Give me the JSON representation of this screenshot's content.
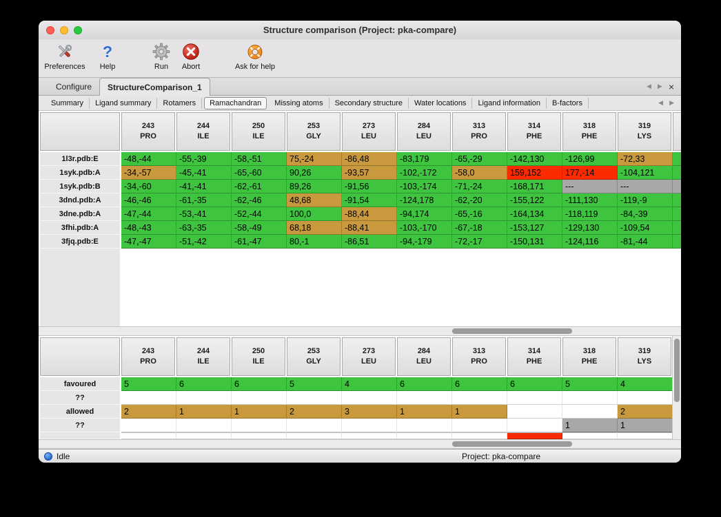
{
  "window": {
    "title": "Structure comparison (Project: pka-compare)"
  },
  "toolbar": [
    {
      "label": "Preferences"
    },
    {
      "label": "Help"
    },
    {
      "label": "Run"
    },
    {
      "label": "Abort"
    },
    {
      "label": "Ask for help"
    }
  ],
  "tabs": [
    {
      "label": "Configure"
    },
    {
      "label": "StructureComparison_1"
    }
  ],
  "subtabs": [
    "Summary",
    "Ligand summary",
    "Rotamers",
    "Ramachandran",
    "Missing atoms",
    "Secondary structure",
    "Water locations",
    "Ligand information",
    "B-factors"
  ],
  "selected_subtab": "Ramachandran",
  "icons": {
    "back": "◀",
    "forward": "▶",
    "close": "×",
    "help": "?"
  },
  "colors": {
    "green": "#3ec43e",
    "orange": "#c9993e",
    "red": "#ff2b00",
    "gray": "#a8a8a8",
    "blank": "#ffffff"
  },
  "columns": [
    {
      "num": "243",
      "res": "PRO"
    },
    {
      "num": "244",
      "res": "ILE"
    },
    {
      "num": "250",
      "res": "ILE"
    },
    {
      "num": "253",
      "res": "GLY"
    },
    {
      "num": "273",
      "res": "LEU"
    },
    {
      "num": "284",
      "res": "LEU"
    },
    {
      "num": "313",
      "res": "PRO"
    },
    {
      "num": "314",
      "res": "PHE"
    },
    {
      "num": "318",
      "res": "PHE"
    },
    {
      "num": "319",
      "res": "LYS"
    }
  ],
  "structure_rows": [
    {
      "label": "1l3r.pdb:E",
      "edge": "green",
      "cells": [
        {
          "v": "-48,-44",
          "c": "green"
        },
        {
          "v": "-55,-39",
          "c": "green"
        },
        {
          "v": "-58,-51",
          "c": "green"
        },
        {
          "v": "75,-24",
          "c": "orange"
        },
        {
          "v": "-86,48",
          "c": "orange"
        },
        {
          "v": "-83,179",
          "c": "green"
        },
        {
          "v": "-65,-29",
          "c": "green"
        },
        {
          "v": "-142,130",
          "c": "green"
        },
        {
          "v": "-126,99",
          "c": "green"
        },
        {
          "v": "-72,33",
          "c": "orange"
        }
      ]
    },
    {
      "label": "1syk.pdb:A",
      "edge": "green",
      "cells": [
        {
          "v": "-34,-57",
          "c": "orange"
        },
        {
          "v": "-45,-41",
          "c": "green"
        },
        {
          "v": "-65,-60",
          "c": "green"
        },
        {
          "v": "90,26",
          "c": "green"
        },
        {
          "v": "-93,57",
          "c": "orange"
        },
        {
          "v": "-102,-172",
          "c": "green"
        },
        {
          "v": "-58,0",
          "c": "orange"
        },
        {
          "v": "159,152",
          "c": "red"
        },
        {
          "v": "177,-14",
          "c": "red"
        },
        {
          "v": "-104,121",
          "c": "green"
        }
      ]
    },
    {
      "label": "1syk.pdb:B",
      "edge": "gray",
      "cells": [
        {
          "v": "-34,-60",
          "c": "green"
        },
        {
          "v": "-41,-41",
          "c": "green"
        },
        {
          "v": "-62,-61",
          "c": "green"
        },
        {
          "v": "89,26",
          "c": "green"
        },
        {
          "v": "-91,56",
          "c": "green"
        },
        {
          "v": "-103,-174",
          "c": "green"
        },
        {
          "v": "-71,-24",
          "c": "green"
        },
        {
          "v": "-168,171",
          "c": "green"
        },
        {
          "v": "---",
          "c": "gray"
        },
        {
          "v": "---",
          "c": "gray"
        }
      ]
    },
    {
      "label": "3dnd.pdb:A",
      "edge": "green",
      "cells": [
        {
          "v": "-46,-46",
          "c": "green"
        },
        {
          "v": "-61,-35",
          "c": "green"
        },
        {
          "v": "-62,-46",
          "c": "green"
        },
        {
          "v": "48,68",
          "c": "orange"
        },
        {
          "v": "-91,54",
          "c": "green"
        },
        {
          "v": "-124,178",
          "c": "green"
        },
        {
          "v": "-62,-20",
          "c": "green"
        },
        {
          "v": "-155,122",
          "c": "green"
        },
        {
          "v": "-111,130",
          "c": "green"
        },
        {
          "v": "-119,-9",
          "c": "green"
        }
      ]
    },
    {
      "label": "3dne.pdb:A",
      "edge": "green",
      "cells": [
        {
          "v": "-47,-44",
          "c": "green"
        },
        {
          "v": "-53,-41",
          "c": "green"
        },
        {
          "v": "-52,-44",
          "c": "green"
        },
        {
          "v": "100,0",
          "c": "green"
        },
        {
          "v": "-88,44",
          "c": "orange"
        },
        {
          "v": "-94,174",
          "c": "green"
        },
        {
          "v": "-65,-16",
          "c": "green"
        },
        {
          "v": "-164,134",
          "c": "green"
        },
        {
          "v": "-118,119",
          "c": "green"
        },
        {
          "v": "-84,-39",
          "c": "green"
        }
      ]
    },
    {
      "label": "3fhi.pdb:A",
      "edge": "green",
      "cells": [
        {
          "v": "-48,-43",
          "c": "green"
        },
        {
          "v": "-63,-35",
          "c": "green"
        },
        {
          "v": "-58,-49",
          "c": "green"
        },
        {
          "v": "68,18",
          "c": "orange"
        },
        {
          "v": "-88,41",
          "c": "orange"
        },
        {
          "v": "-103,-170",
          "c": "green"
        },
        {
          "v": "-67,-18",
          "c": "green"
        },
        {
          "v": "-153,127",
          "c": "green"
        },
        {
          "v": "-129,130",
          "c": "green"
        },
        {
          "v": "-109,54",
          "c": "green"
        }
      ]
    },
    {
      "label": "3fjq.pdb:E",
      "edge": "green",
      "cells": [
        {
          "v": "-47,-47",
          "c": "green"
        },
        {
          "v": "-51,-42",
          "c": "green"
        },
        {
          "v": "-61,-47",
          "c": "green"
        },
        {
          "v": "80,-1",
          "c": "green"
        },
        {
          "v": "-86,51",
          "c": "green"
        },
        {
          "v": "-94,-179",
          "c": "green"
        },
        {
          "v": "-72,-17",
          "c": "green"
        },
        {
          "v": "-150,131",
          "c": "green"
        },
        {
          "v": "-124,116",
          "c": "green"
        },
        {
          "v": "-81,-44",
          "c": "green"
        }
      ]
    }
  ],
  "summary_rows": [
    {
      "label": "favoured",
      "cells": [
        {
          "v": "5",
          "c": "green"
        },
        {
          "v": "6",
          "c": "green"
        },
        {
          "v": "6",
          "c": "green"
        },
        {
          "v": "5",
          "c": "green"
        },
        {
          "v": "4",
          "c": "green"
        },
        {
          "v": "6",
          "c": "green"
        },
        {
          "v": "6",
          "c": "green"
        },
        {
          "v": "6",
          "c": "green"
        },
        {
          "v": "5",
          "c": "green"
        },
        {
          "v": "4",
          "c": "green"
        }
      ]
    },
    {
      "label": "??",
      "cells": [
        {
          "v": "",
          "c": "blank"
        },
        {
          "v": "",
          "c": "blank"
        },
        {
          "v": "",
          "c": "blank"
        },
        {
          "v": "",
          "c": "blank"
        },
        {
          "v": "",
          "c": "blank"
        },
        {
          "v": "",
          "c": "blank"
        },
        {
          "v": "",
          "c": "blank"
        },
        {
          "v": "",
          "c": "blank"
        },
        {
          "v": "",
          "c": "blank"
        },
        {
          "v": "",
          "c": "blank"
        }
      ]
    },
    {
      "label": "allowed",
      "cells": [
        {
          "v": "2",
          "c": "orange"
        },
        {
          "v": "1",
          "c": "orange"
        },
        {
          "v": "1",
          "c": "orange"
        },
        {
          "v": "2",
          "c": "orange"
        },
        {
          "v": "3",
          "c": "orange"
        },
        {
          "v": "1",
          "c": "orange"
        },
        {
          "v": "1",
          "c": "orange"
        },
        {
          "v": "",
          "c": "blank"
        },
        {
          "v": "",
          "c": "blank"
        },
        {
          "v": "2",
          "c": "orange"
        }
      ]
    },
    {
      "label": "??",
      "cells": [
        {
          "v": "",
          "c": "blank"
        },
        {
          "v": "",
          "c": "blank"
        },
        {
          "v": "",
          "c": "blank"
        },
        {
          "v": "",
          "c": "blank"
        },
        {
          "v": "",
          "c": "blank"
        },
        {
          "v": "",
          "c": "blank"
        },
        {
          "v": "",
          "c": "blank"
        },
        {
          "v": "",
          "c": "blank"
        },
        {
          "v": "1",
          "c": "gray"
        },
        {
          "v": "1",
          "c": "gray"
        }
      ]
    },
    {
      "label": "",
      "partial": true,
      "cells": [
        {
          "v": "",
          "c": "blank"
        },
        {
          "v": "",
          "c": "blank"
        },
        {
          "v": "",
          "c": "blank"
        },
        {
          "v": "",
          "c": "blank"
        },
        {
          "v": "",
          "c": "blank"
        },
        {
          "v": "",
          "c": "blank"
        },
        {
          "v": "",
          "c": "blank"
        },
        {
          "v": "",
          "c": "red"
        },
        {
          "v": "",
          "c": "blank"
        },
        {
          "v": "",
          "c": "blank"
        }
      ]
    }
  ],
  "statusbar": {
    "state": "Idle",
    "project": "Project: pka-compare"
  }
}
